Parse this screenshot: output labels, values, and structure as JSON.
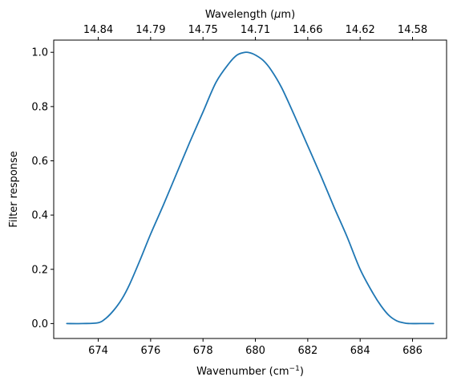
{
  "chart_data": {
    "type": "line",
    "title": "",
    "xlabel": "Wavenumber (cm",
    "xlabel_sup": "−1",
    "xlabel_end": ")",
    "x2label": "Wavelength (",
    "x2label_mu": "μ",
    "x2label_end": "m)",
    "ylabel": "Filter response",
    "xlim": [
      672.3,
      687.3
    ],
    "ylim": [
      -0.055,
      1.045
    ],
    "grid": false,
    "legend": "none",
    "x_ticks": [
      674,
      676,
      678,
      680,
      682,
      684,
      686
    ],
    "x_tick_labels": [
      "674",
      "676",
      "678",
      "680",
      "682",
      "684",
      "686"
    ],
    "y_ticks": [
      0.0,
      0.2,
      0.4,
      0.6,
      0.8,
      1.0
    ],
    "y_tick_labels": [
      "0.0",
      "0.2",
      "0.4",
      "0.6",
      "0.8",
      "1.0"
    ],
    "x2_tick_labels": [
      "14.84",
      "14.79",
      "14.75",
      "14.71",
      "14.66",
      "14.62",
      "14.58"
    ],
    "series": [
      {
        "color": "#1f77b4",
        "x": [
          672.8,
          673.4,
          674.0,
          674.3,
          674.6,
          674.9,
          675.2,
          675.6,
          676.0,
          676.5,
          677.0,
          677.5,
          678.0,
          678.5,
          679.0,
          679.3,
          679.6,
          679.8,
          680.0,
          680.3,
          680.6,
          681.0,
          681.5,
          682.0,
          682.5,
          683.0,
          683.5,
          684.0,
          684.5,
          684.8,
          685.1,
          685.4,
          685.7,
          685.9,
          686.3,
          686.8
        ],
        "y": [
          0.0,
          0.0,
          0.003,
          0.02,
          0.05,
          0.09,
          0.145,
          0.235,
          0.33,
          0.44,
          0.555,
          0.67,
          0.78,
          0.89,
          0.96,
          0.99,
          1.0,
          0.998,
          0.99,
          0.97,
          0.935,
          0.87,
          0.765,
          0.655,
          0.545,
          0.43,
          0.32,
          0.2,
          0.11,
          0.065,
          0.03,
          0.01,
          0.002,
          0.0,
          0.0,
          0.0
        ]
      }
    ]
  }
}
